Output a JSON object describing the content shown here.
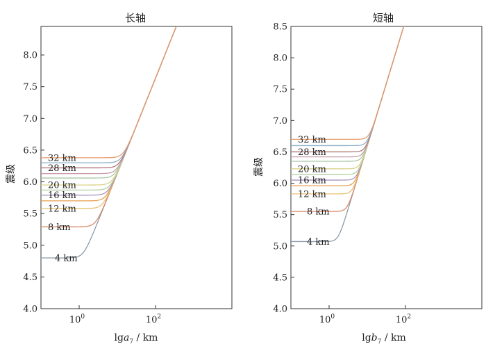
{
  "chart_data": [
    {
      "type": "line",
      "title": "长轴",
      "xlabel_prefix": "lg",
      "xlabel_var": "a",
      "xlabel_sub": "7",
      "xlabel_suffix": " / km",
      "ylabel": "震级",
      "x_scale": "log",
      "xlim": [
        0.1,
        10000
      ],
      "xticks": [
        {
          "value": 1,
          "base": "10",
          "exp": "0"
        },
        {
          "value": 100,
          "base": "10",
          "exp": "2"
        }
      ],
      "ylim": [
        4.0,
        8.45
      ],
      "yticks": [
        "4.0",
        "4.5",
        "5.0",
        "5.5",
        "6.0",
        "6.5",
        "7.0",
        "7.5",
        "8.0"
      ],
      "series": [
        {
          "name": "4 km",
          "plateau": 4.8,
          "color": "#8a9aa8",
          "labeled": true
        },
        {
          "name": "8 km",
          "plateau": 5.29,
          "color": "#d98a6a",
          "labeled": true
        },
        {
          "name": "12 km",
          "plateau": 5.58,
          "color": "#e8c070",
          "labeled": true
        },
        {
          "name": "",
          "plateau": 5.7,
          "color": "#e6a050",
          "labeled": false
        },
        {
          "name": "16 km",
          "plateau": 5.79,
          "color": "#a892c0",
          "labeled": true
        },
        {
          "name": "",
          "plateau": 5.87,
          "color": "#b0cfa0",
          "labeled": false
        },
        {
          "name": "20 km",
          "plateau": 5.95,
          "color": "#d8d28a",
          "labeled": true
        },
        {
          "name": "",
          "plateau": 6.06,
          "color": "#a8c8a8",
          "labeled": false
        },
        {
          "name": "",
          "plateau": 6.13,
          "color": "#c89aa8",
          "labeled": false
        },
        {
          "name": "28 km",
          "plateau": 6.22,
          "color": "#b07878",
          "labeled": true
        },
        {
          "name": "",
          "plateau": 6.3,
          "color": "#8ab0c8",
          "labeled": false
        },
        {
          "name": "32 km",
          "plateau": 6.38,
          "color": "#e89a6a",
          "labeled": true
        }
      ],
      "scaling_line": {
        "slope": 1.5,
        "x_ref": 30,
        "y_ref": 6.85
      }
    },
    {
      "type": "line",
      "title": "短轴",
      "xlabel_prefix": "lg",
      "xlabel_var": "b",
      "xlabel_sub": "7",
      "xlabel_suffix": " / km",
      "ylabel": "震级",
      "x_scale": "log",
      "xlim": [
        0.1,
        10000
      ],
      "xticks": [
        {
          "value": 1,
          "base": "10",
          "exp": "0"
        },
        {
          "value": 100,
          "base": "10",
          "exp": "2"
        }
      ],
      "ylim": [
        4.0,
        8.5
      ],
      "yticks": [
        "4.0",
        "4.5",
        "5.0",
        "5.5",
        "6.0",
        "6.5",
        "7.0",
        "7.5",
        "8.0",
        "8.5"
      ],
      "series": [
        {
          "name": "4 km",
          "plateau": 5.07,
          "color": "#8a9aa8",
          "labeled": true
        },
        {
          "name": "8 km",
          "plateau": 5.55,
          "color": "#d98a6a",
          "labeled": true
        },
        {
          "name": "12 km",
          "plateau": 5.83,
          "color": "#e8c070",
          "labeled": true
        },
        {
          "name": "",
          "plateau": 5.96,
          "color": "#e6a050",
          "labeled": false
        },
        {
          "name": "16 km",
          "plateau": 6.05,
          "color": "#a892c0",
          "labeled": true
        },
        {
          "name": "",
          "plateau": 6.14,
          "color": "#b0cfa0",
          "labeled": false
        },
        {
          "name": "20 km",
          "plateau": 6.23,
          "color": "#d8d28a",
          "labeled": true
        },
        {
          "name": "",
          "plateau": 6.35,
          "color": "#a8c8a8",
          "labeled": false
        },
        {
          "name": "",
          "plateau": 6.42,
          "color": "#c89aa8",
          "labeled": false
        },
        {
          "name": "28 km",
          "plateau": 6.5,
          "color": "#b07878",
          "labeled": true
        },
        {
          "name": "",
          "plateau": 6.6,
          "color": "#8ab0c8",
          "labeled": false
        },
        {
          "name": "32 km",
          "plateau": 6.7,
          "color": "#e89a6a",
          "labeled": true
        }
      ],
      "scaling_line": {
        "slope": 2.0,
        "x_ref": 12,
        "y_ref": 6.75
      }
    }
  ]
}
